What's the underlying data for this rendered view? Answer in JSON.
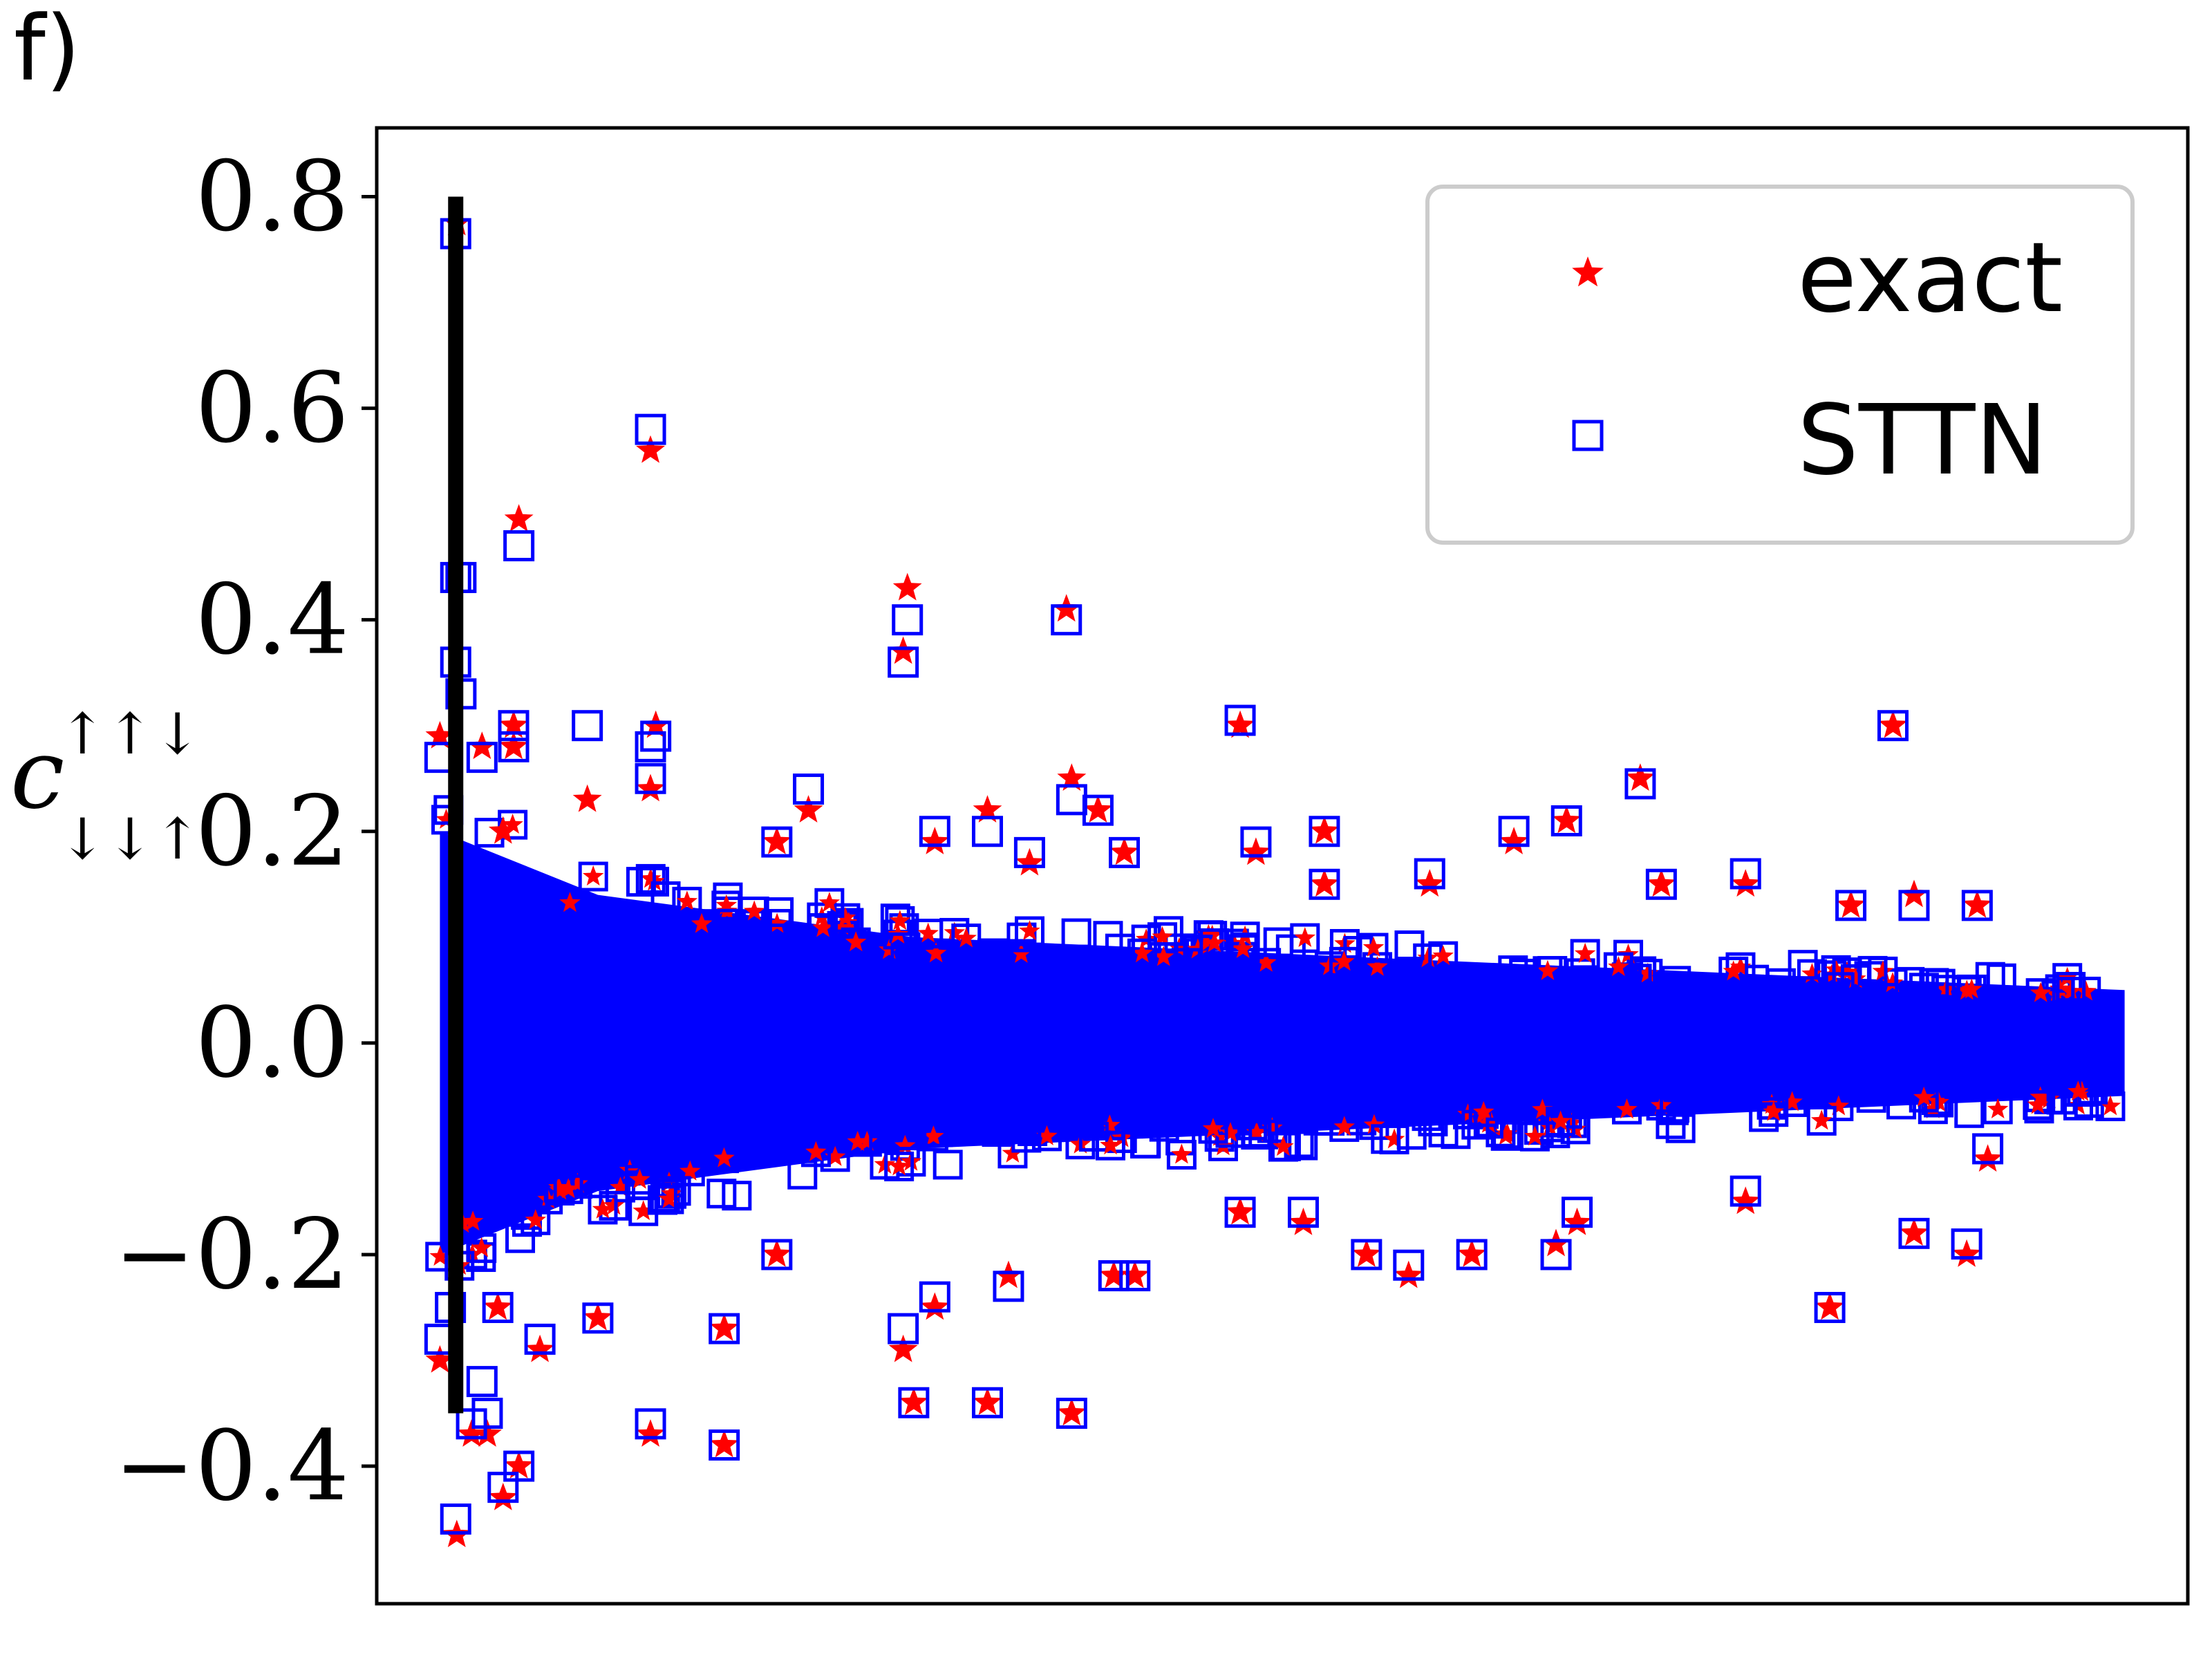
{
  "panel_label": "f)",
  "colors": {
    "exact": "#ff0000",
    "sttn": "#0000ff",
    "axis": "#000000",
    "legend_border": "#cccccc"
  },
  "chart_data": {
    "type": "scatter",
    "title": "",
    "xlabel": "",
    "ylabel": {
      "base": "c",
      "superscript": "↑↑↓",
      "subscript": "↓↓↑"
    },
    "ylim": [
      -0.53,
      0.865
    ],
    "xlim": [
      -60,
      1660
    ],
    "x_ticks_visible": false,
    "y_ticks": [
      -0.4,
      -0.2,
      0.0,
      0.2,
      0.4,
      0.6,
      0.8
    ],
    "y_tick_labels": [
      "−0.4",
      "−0.2",
      "0.0",
      "0.2",
      "0.4",
      "0.6",
      "0.8"
    ],
    "grid": false,
    "legend_position": "top-right",
    "vertical_line": {
      "x": 15,
      "y_from": -0.35,
      "y_to": 0.8
    },
    "envelope": [
      {
        "x": 0,
        "amp": 0.2
      },
      {
        "x": 150,
        "amp": 0.14
      },
      {
        "x": 450,
        "amp": 0.1
      },
      {
        "x": 900,
        "amp": 0.08
      },
      {
        "x": 1600,
        "amp": 0.05
      }
    ],
    "series": [
      {
        "name": "exact",
        "marker": "star",
        "points": [
          [
            16,
            0.775
          ],
          [
            16,
            -0.465
          ],
          [
            0,
            0.29
          ],
          [
            0,
            -0.3
          ],
          [
            40,
            0.28
          ],
          [
            60,
            0.2
          ],
          [
            70,
            0.3
          ],
          [
            70,
            0.28
          ],
          [
            75,
            0.495
          ],
          [
            60,
            -0.43
          ],
          [
            75,
            -0.4
          ],
          [
            45,
            -0.37
          ],
          [
            30,
            -0.37
          ],
          [
            55,
            -0.25
          ],
          [
            95,
            -0.29
          ],
          [
            140,
            0.23
          ],
          [
            150,
            -0.26
          ],
          [
            200,
            0.56
          ],
          [
            205,
            0.3
          ],
          [
            200,
            0.24
          ],
          [
            200,
            -0.37
          ],
          [
            270,
            -0.27
          ],
          [
            270,
            -0.38
          ],
          [
            320,
            0.19
          ],
          [
            320,
            -0.2
          ],
          [
            350,
            0.22
          ],
          [
            440,
            0.37
          ],
          [
            444,
            0.43
          ],
          [
            440,
            -0.29
          ],
          [
            450,
            -0.34
          ],
          [
            470,
            0.19
          ],
          [
            470,
            -0.25
          ],
          [
            520,
            0.22
          ],
          [
            520,
            -0.34
          ],
          [
            540,
            -0.22
          ],
          [
            560,
            0.17
          ],
          [
            595,
            0.41
          ],
          [
            600,
            0.25
          ],
          [
            600,
            -0.35
          ],
          [
            625,
            0.22
          ],
          [
            640,
            -0.22
          ],
          [
            650,
            0.18
          ],
          [
            660,
            -0.22
          ],
          [
            760,
            0.3
          ],
          [
            760,
            -0.16
          ],
          [
            775,
            0.18
          ],
          [
            820,
            -0.17
          ],
          [
            840,
            0.2
          ],
          [
            840,
            0.15
          ],
          [
            880,
            -0.2
          ],
          [
            920,
            -0.22
          ],
          [
            940,
            0.15
          ],
          [
            980,
            -0.2
          ],
          [
            1020,
            0.19
          ],
          [
            1060,
            -0.19
          ],
          [
            1070,
            0.21
          ],
          [
            1080,
            -0.17
          ],
          [
            1140,
            0.25
          ],
          [
            1160,
            0.15
          ],
          [
            1240,
            0.15
          ],
          [
            1240,
            -0.15
          ],
          [
            1320,
            -0.25
          ],
          [
            1340,
            0.13
          ],
          [
            1380,
            0.3
          ],
          [
            1400,
            0.14
          ],
          [
            1400,
            -0.18
          ],
          [
            1450,
            -0.2
          ],
          [
            1460,
            0.13
          ],
          [
            1470,
            -0.11
          ]
        ]
      },
      {
        "name": "STTN",
        "marker": "square",
        "points": [
          [
            15,
            0.765
          ],
          [
            15,
            -0.45
          ],
          [
            15,
            0.44
          ],
          [
            20,
            0.44
          ],
          [
            15,
            0.36
          ],
          [
            20,
            0.33
          ],
          [
            0,
            0.27
          ],
          [
            0,
            -0.28
          ],
          [
            10,
            -0.25
          ],
          [
            40,
            0.27
          ],
          [
            40,
            -0.32
          ],
          [
            70,
            0.3
          ],
          [
            70,
            0.28
          ],
          [
            75,
            0.47
          ],
          [
            60,
            -0.42
          ],
          [
            75,
            -0.4
          ],
          [
            45,
            -0.35
          ],
          [
            30,
            -0.36
          ],
          [
            55,
            -0.25
          ],
          [
            95,
            -0.28
          ],
          [
            140,
            0.3
          ],
          [
            150,
            -0.26
          ],
          [
            200,
            0.58
          ],
          [
            205,
            0.29
          ],
          [
            200,
            0.25
          ],
          [
            200,
            0.28
          ],
          [
            200,
            -0.36
          ],
          [
            270,
            -0.27
          ],
          [
            270,
            -0.38
          ],
          [
            320,
            0.19
          ],
          [
            320,
            -0.2
          ],
          [
            350,
            0.24
          ],
          [
            440,
            0.36
          ],
          [
            444,
            0.4
          ],
          [
            440,
            -0.27
          ],
          [
            450,
            -0.34
          ],
          [
            470,
            0.2
          ],
          [
            470,
            -0.24
          ],
          [
            520,
            0.2
          ],
          [
            520,
            -0.34
          ],
          [
            540,
            -0.23
          ],
          [
            560,
            0.18
          ],
          [
            595,
            0.4
          ],
          [
            600,
            0.23
          ],
          [
            600,
            -0.35
          ],
          [
            625,
            0.22
          ],
          [
            640,
            -0.22
          ],
          [
            650,
            0.18
          ],
          [
            660,
            -0.22
          ],
          [
            760,
            0.305
          ],
          [
            760,
            -0.16
          ],
          [
            775,
            0.19
          ],
          [
            820,
            -0.16
          ],
          [
            840,
            0.2
          ],
          [
            840,
            0.15
          ],
          [
            880,
            -0.2
          ],
          [
            920,
            -0.21
          ],
          [
            940,
            0.16
          ],
          [
            980,
            -0.2
          ],
          [
            1020,
            0.2
          ],
          [
            1060,
            -0.2
          ],
          [
            1070,
            0.21
          ],
          [
            1080,
            -0.16
          ],
          [
            1140,
            0.245
          ],
          [
            1160,
            0.15
          ],
          [
            1240,
            0.16
          ],
          [
            1240,
            -0.14
          ],
          [
            1320,
            -0.25
          ],
          [
            1340,
            0.13
          ],
          [
            1380,
            0.3
          ],
          [
            1400,
            0.13
          ],
          [
            1400,
            -0.18
          ],
          [
            1450,
            -0.19
          ],
          [
            1460,
            0.13
          ],
          [
            1470,
            -0.1
          ]
        ]
      }
    ]
  }
}
